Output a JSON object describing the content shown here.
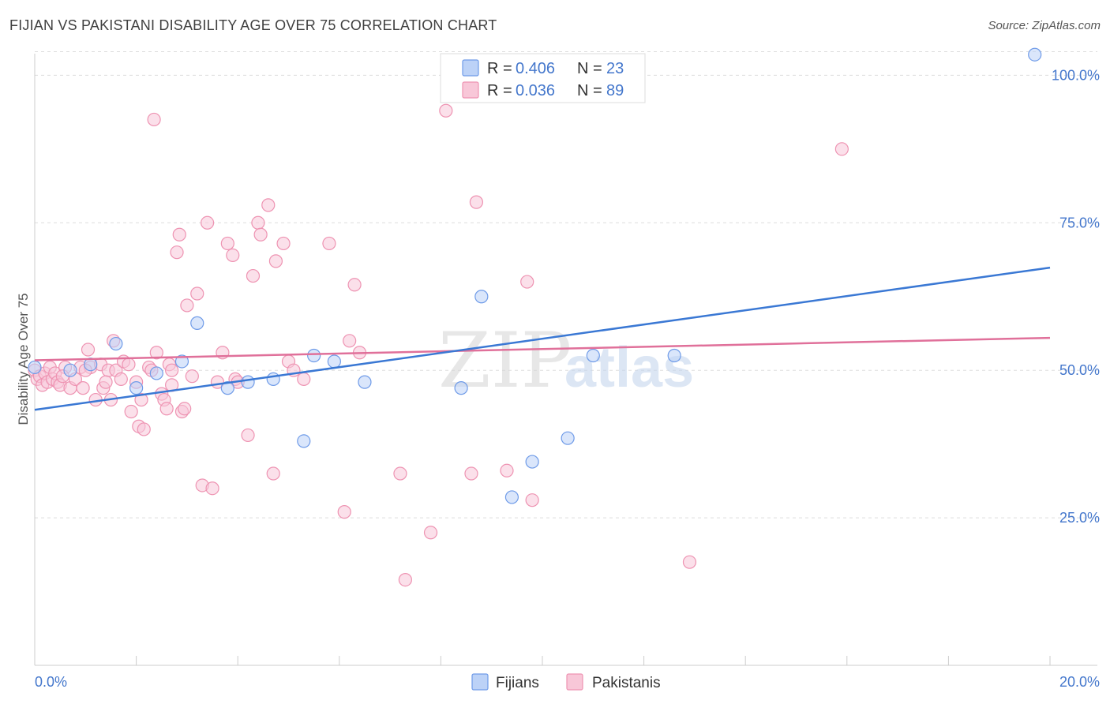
{
  "title": "FIJIAN VS PAKISTANI DISABILITY AGE OVER 75 CORRELATION CHART",
  "source": "Source: ZipAtlas.com",
  "watermark": {
    "zip": "ZIP",
    "atlas": "atlas"
  },
  "colors": {
    "fijians": "#6f9be8",
    "fijians_fill": "#bcd2f7",
    "fijians_line": "#3a78d4",
    "pakistanis": "#ee93b2",
    "pakistanis_fill": "#f8c7d8",
    "pakistanis_line": "#e0709a",
    "tick_text": "#4477cc"
  },
  "legend": {
    "rows": [
      {
        "r_label": "R = ",
        "r_value": "0.406",
        "n_label": "N = ",
        "n_value": "23"
      },
      {
        "r_label": "R = ",
        "r_value": "0.036",
        "n_label": "N = ",
        "n_value": "89"
      }
    ]
  },
  "chart_data": {
    "type": "scatter",
    "title": "FIJIAN VS PAKISTANI DISABILITY AGE OVER 75 CORRELATION CHART",
    "xlabel": "",
    "ylabel": "Disability Age Over 75",
    "xlim": [
      0,
      20
    ],
    "ylim": [
      0,
      105
    ],
    "x_tick_labels": [
      "0.0%",
      "20.0%"
    ],
    "y_ticks": [
      25,
      50,
      75,
      100
    ],
    "y_tick_labels": [
      "25.0%",
      "50.0%",
      "75.0%",
      "100.0%"
    ],
    "grid": true,
    "legend_position": "top-center",
    "series": [
      {
        "name": "Fijians",
        "r": 0.406,
        "n": 23,
        "trend": {
          "x": [
            0,
            20
          ],
          "y": [
            43.3,
            67.4
          ]
        },
        "points": [
          [
            0.0,
            50.5
          ],
          [
            0.7,
            50.0
          ],
          [
            1.1,
            51.0
          ],
          [
            1.6,
            54.5
          ],
          [
            2.0,
            47.0
          ],
          [
            2.4,
            49.5
          ],
          [
            2.9,
            51.5
          ],
          [
            3.2,
            58.0
          ],
          [
            3.8,
            47.0
          ],
          [
            4.2,
            48.0
          ],
          [
            4.7,
            48.5
          ],
          [
            5.3,
            38.0
          ],
          [
            5.5,
            52.5
          ],
          [
            5.9,
            51.5
          ],
          [
            6.5,
            48.0
          ],
          [
            8.4,
            47.0
          ],
          [
            8.8,
            62.5
          ],
          [
            9.4,
            28.5
          ],
          [
            9.8,
            34.5
          ],
          [
            10.5,
            38.5
          ],
          [
            11.0,
            52.5
          ],
          [
            12.6,
            52.5
          ],
          [
            19.7,
            103.5
          ]
        ]
      },
      {
        "name": "Pakistanis",
        "r": 0.036,
        "n": 89,
        "trend": {
          "x": [
            0,
            20
          ],
          "y": [
            51.7,
            55.5
          ]
        },
        "points": [
          [
            0.0,
            50.0
          ],
          [
            0.05,
            48.5
          ],
          [
            0.1,
            49.0
          ],
          [
            0.15,
            47.5
          ],
          [
            0.2,
            49.5
          ],
          [
            0.25,
            48.0
          ],
          [
            0.3,
            50.5
          ],
          [
            0.35,
            48.5
          ],
          [
            0.4,
            49.5
          ],
          [
            0.45,
            48.0
          ],
          [
            0.5,
            47.5
          ],
          [
            0.6,
            50.5
          ],
          [
            0.7,
            47.0
          ],
          [
            0.8,
            48.5
          ],
          [
            0.9,
            50.5
          ],
          [
            0.95,
            47.0
          ],
          [
            1.05,
            53.5
          ],
          [
            1.1,
            50.5
          ],
          [
            1.2,
            45.0
          ],
          [
            1.3,
            51.0
          ],
          [
            1.35,
            47.0
          ],
          [
            1.45,
            50.0
          ],
          [
            1.5,
            45.0
          ],
          [
            1.55,
            55.0
          ],
          [
            1.6,
            50.0
          ],
          [
            1.7,
            48.5
          ],
          [
            1.75,
            51.5
          ],
          [
            1.85,
            51.0
          ],
          [
            1.9,
            43.0
          ],
          [
            2.0,
            48.0
          ],
          [
            2.05,
            40.5
          ],
          [
            2.1,
            45.0
          ],
          [
            2.15,
            40.0
          ],
          [
            2.25,
            50.5
          ],
          [
            2.3,
            50.0
          ],
          [
            2.35,
            92.5
          ],
          [
            2.4,
            53.0
          ],
          [
            2.5,
            46.0
          ],
          [
            2.55,
            45.0
          ],
          [
            2.6,
            43.5
          ],
          [
            2.65,
            51.0
          ],
          [
            2.7,
            50.0
          ],
          [
            2.8,
            70.0
          ],
          [
            2.85,
            73.0
          ],
          [
            2.9,
            43.0
          ],
          [
            2.95,
            43.5
          ],
          [
            3.0,
            61.0
          ],
          [
            3.1,
            49.0
          ],
          [
            3.2,
            63.0
          ],
          [
            3.3,
            30.5
          ],
          [
            3.4,
            75.0
          ],
          [
            3.5,
            30.0
          ],
          [
            3.6,
            48.0
          ],
          [
            3.7,
            53.0
          ],
          [
            3.8,
            71.5
          ],
          [
            3.9,
            69.5
          ],
          [
            3.95,
            48.5
          ],
          [
            4.0,
            48.0
          ],
          [
            4.2,
            39.0
          ],
          [
            4.3,
            66.0
          ],
          [
            4.4,
            75.0
          ],
          [
            4.45,
            73.0
          ],
          [
            4.6,
            78.0
          ],
          [
            4.7,
            32.5
          ],
          [
            4.75,
            68.5
          ],
          [
            4.9,
            71.5
          ],
          [
            5.0,
            51.5
          ],
          [
            5.1,
            50.0
          ],
          [
            5.3,
            48.5
          ],
          [
            5.8,
            71.5
          ],
          [
            6.1,
            26.0
          ],
          [
            6.2,
            55.0
          ],
          [
            6.3,
            64.5
          ],
          [
            6.4,
            53.0
          ],
          [
            7.2,
            32.5
          ],
          [
            7.3,
            14.5
          ],
          [
            7.8,
            22.5
          ],
          [
            8.1,
            94.0
          ],
          [
            8.6,
            32.5
          ],
          [
            8.7,
            78.5
          ],
          [
            9.3,
            33.0
          ],
          [
            9.7,
            65.0
          ],
          [
            9.8,
            28.0
          ],
          [
            12.9,
            17.5
          ],
          [
            15.9,
            87.5
          ],
          [
            0.55,
            49.0
          ],
          [
            1.0,
            50.0
          ],
          [
            1.4,
            48.0
          ],
          [
            2.7,
            47.5
          ]
        ]
      }
    ]
  }
}
